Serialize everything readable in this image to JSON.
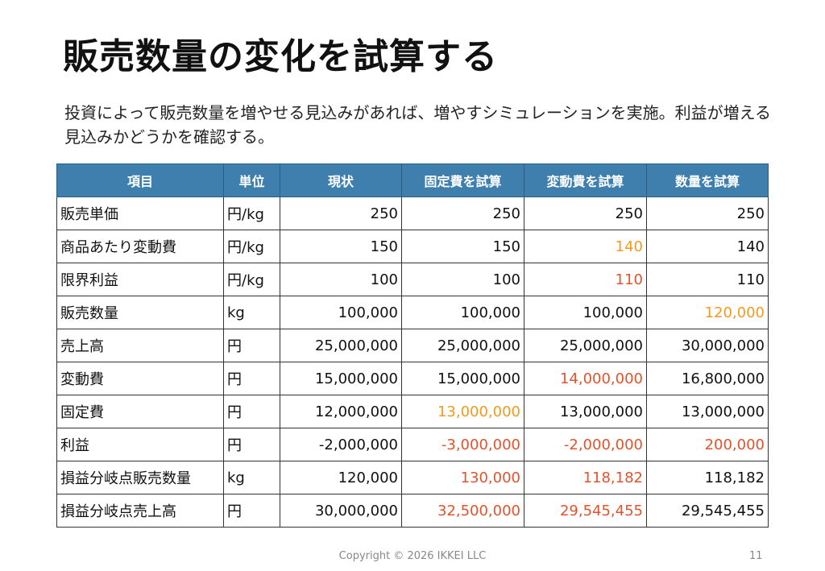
{
  "title": "販売数量の変化を試算する",
  "body": "投資によって販売数量を増やせる見込みがあれば、増やすシミュレーションを実施。利益が増える見込みかどうかを確認する。",
  "colors": {
    "header": "#3f7fad",
    "orange": "#f29a1f",
    "red": "#e2532d"
  },
  "table": {
    "headers": [
      "項目",
      "単位",
      "現状",
      "固定費を試算",
      "変動費を試算",
      "数量を試算"
    ],
    "rows": [
      {
        "label": "販売単価",
        "unit": "円/kg",
        "values": [
          "250",
          "250",
          "250",
          "250"
        ],
        "colors": [
          "",
          "",
          "",
          ""
        ]
      },
      {
        "label": "商品あたり変動費",
        "unit": "円/kg",
        "values": [
          "150",
          "150",
          "140",
          "140"
        ],
        "colors": [
          "",
          "",
          "orange",
          ""
        ]
      },
      {
        "label": "限界利益",
        "unit": "円/kg",
        "values": [
          "100",
          "100",
          "110",
          "110"
        ],
        "colors": [
          "",
          "",
          "red",
          ""
        ]
      },
      {
        "label": "販売数量",
        "unit": "kg",
        "values": [
          "100,000",
          "100,000",
          "100,000",
          "120,000"
        ],
        "colors": [
          "",
          "",
          "",
          "orange"
        ]
      },
      {
        "label": "売上高",
        "unit": "円",
        "values": [
          "25,000,000",
          "25,000,000",
          "25,000,000",
          "30,000,000"
        ],
        "colors": [
          "",
          "",
          "",
          ""
        ]
      },
      {
        "label": "変動費",
        "unit": "円",
        "values": [
          "15,000,000",
          "15,000,000",
          "14,000,000",
          "16,800,000"
        ],
        "colors": [
          "",
          "",
          "red",
          ""
        ]
      },
      {
        "label": "固定費",
        "unit": "円",
        "values": [
          "12,000,000",
          "13,000,000",
          "13,000,000",
          "13,000,000"
        ],
        "colors": [
          "",
          "orange",
          "",
          ""
        ]
      },
      {
        "label": "利益",
        "unit": "円",
        "values": [
          "-2,000,000",
          "-3,000,000",
          "-2,000,000",
          "200,000"
        ],
        "colors": [
          "",
          "red",
          "red",
          "red"
        ]
      },
      {
        "label": "損益分岐点販売数量",
        "unit": "kg",
        "values": [
          "120,000",
          "130,000",
          "118,182",
          "118,182"
        ],
        "colors": [
          "",
          "red",
          "red",
          ""
        ]
      },
      {
        "label": "損益分岐点売上高",
        "unit": "円",
        "values": [
          "30,000,000",
          "32,500,000",
          "29,545,455",
          "29,545,455"
        ],
        "colors": [
          "",
          "red",
          "red",
          ""
        ]
      }
    ]
  },
  "footer": "Copyright © 2026 IKKEI LLC",
  "page_number": "11"
}
